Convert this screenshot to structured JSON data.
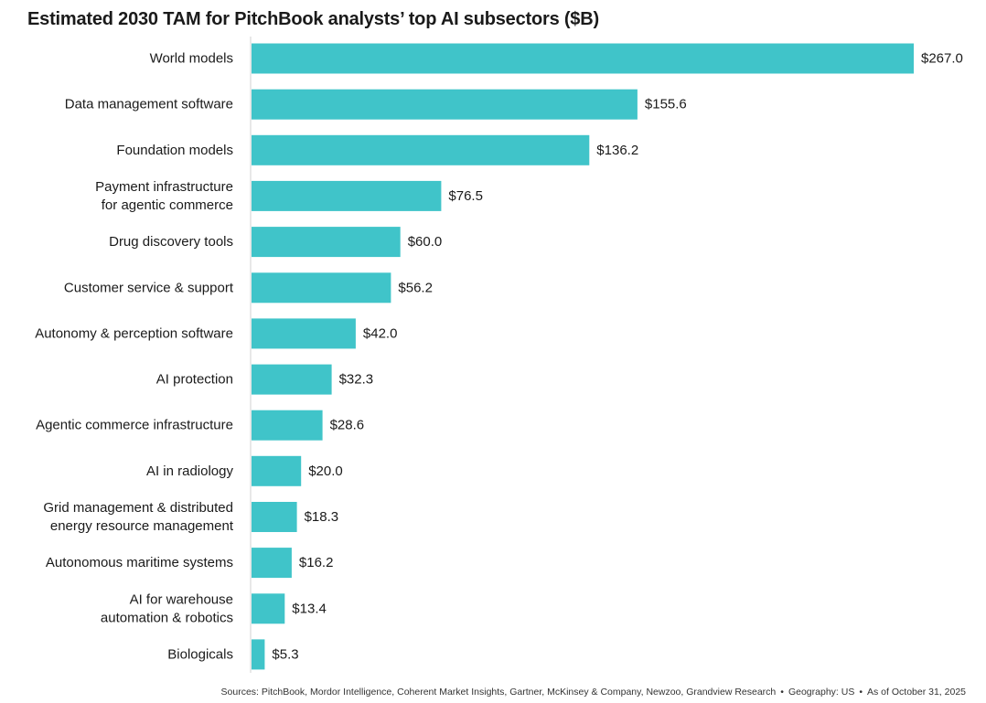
{
  "chart_data": {
    "type": "bar",
    "orientation": "horizontal",
    "title": "Estimated 2030 TAM for PitchBook analysts’ top AI subsectors ($B)",
    "xlabel": "",
    "ylabel": "",
    "xlim": [
      0,
      267
    ],
    "grid": false,
    "bar_color": "#40c4c9",
    "value_prefix": "$",
    "categories": [
      [
        "World models"
      ],
      [
        "Data management software"
      ],
      [
        "Foundation models"
      ],
      [
        "Payment infrastructure",
        "for agentic commerce"
      ],
      [
        "Drug discovery tools"
      ],
      [
        "Customer service & support"
      ],
      [
        "Autonomy & perception software"
      ],
      [
        "AI protection"
      ],
      [
        "Agentic commerce infrastructure"
      ],
      [
        "AI in radiology"
      ],
      [
        "Grid management & distributed",
        "energy resource management"
      ],
      [
        "Autonomous maritime systems"
      ],
      [
        "AI for warehouse",
        "automation & robotics"
      ],
      [
        "Biologicals"
      ]
    ],
    "values": [
      267.0,
      155.6,
      136.2,
      76.5,
      60.0,
      56.2,
      42.0,
      32.3,
      28.6,
      20.0,
      18.3,
      16.2,
      13.4,
      5.3
    ],
    "value_labels": [
      "$267.0",
      "$155.6",
      "$136.2",
      "$76.5",
      "$60.0",
      "$56.2",
      "$42.0",
      "$32.3",
      "$28.6",
      "$20.0",
      "$18.3",
      "$16.2",
      "$13.4",
      "$5.3"
    ]
  },
  "footer": {
    "sources": "Sources: PitchBook, Mordor Intelligence, Coherent Market Insights, Gartner, McKinsey & Company, Newzoo, Grandview Research",
    "separator": "•",
    "geography": "Geography: US",
    "as_of": "As of October 31, 2025"
  }
}
